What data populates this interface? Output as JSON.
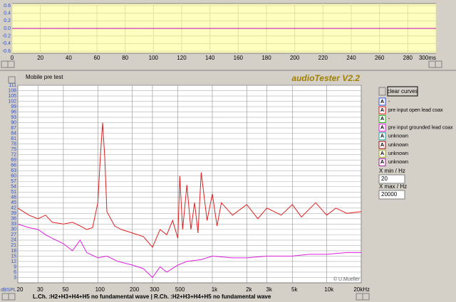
{
  "scope": {
    "type": "line",
    "xlim": [
      0,
      300
    ],
    "ylim": [
      -0.6,
      0.6
    ],
    "xticks": [
      0,
      20,
      40,
      60,
      80,
      100,
      120,
      140,
      160,
      180,
      200,
      220,
      240,
      260,
      280,
      {
        "value": 300,
        "label": "300ms"
      }
    ],
    "yticks": [
      0.6,
      0.4,
      0.2,
      {
        "value": 0,
        "label": "0.0"
      },
      -0.2,
      -0.4,
      -0.6
    ],
    "series": [
      {
        "color": "#c000c0",
        "x": [
          0,
          300
        ],
        "values": [
          0,
          0
        ]
      }
    ],
    "grid": true
  },
  "app_title": "audioTester V2.2",
  "test_name": "Mobile pre test",
  "chart_data": {
    "type": "line",
    "xscale": "log",
    "xlim": [
      20,
      20000
    ],
    "ylim": [
      0,
      111
    ],
    "x_axis_label": "dBSPL",
    "xticks": [
      20,
      30,
      50,
      100,
      200,
      300,
      500,
      {
        "value": 1000,
        "label": "1k"
      },
      {
        "value": 2000,
        "label": "2k"
      },
      {
        "value": 3000,
        "label": "3k"
      },
      {
        "value": 5000,
        "label": "5k"
      },
      {
        "value": 10000,
        "label": "10k"
      },
      {
        "value": 20000,
        "label": "20kHz"
      }
    ],
    "yticks": [
      3,
      6,
      9,
      12,
      15,
      18,
      21,
      24,
      27,
      30,
      33,
      36,
      39,
      42,
      45,
      48,
      51,
      54,
      57,
      60,
      63,
      66,
      69,
      72,
      75,
      78,
      81,
      84,
      87,
      90,
      93,
      96,
      99,
      102,
      105,
      108,
      111
    ],
    "grid": true,
    "credit": "© U.Mueller",
    "series": [
      {
        "name": "pre input open lead coax",
        "color": "#e02020",
        "x": [
          20,
          25,
          30,
          35,
          40,
          50,
          60,
          70,
          80,
          90,
          100,
          105,
          110,
          115,
          120,
          140,
          160,
          200,
          250,
          300,
          350,
          400,
          450,
          500,
          520,
          550,
          600,
          650,
          700,
          750,
          800,
          900,
          1000,
          1100,
          1200,
          1500,
          2000,
          2500,
          3000,
          4000,
          5000,
          6000,
          8000,
          10000,
          12000,
          15000,
          20000
        ],
        "values": [
          42,
          38,
          36,
          38,
          34,
          33,
          34,
          32,
          30,
          31,
          45,
          70,
          90,
          70,
          40,
          32,
          30,
          28,
          26,
          20,
          30,
          27,
          35,
          25,
          60,
          30,
          55,
          30,
          45,
          28,
          62,
          35,
          50,
          32,
          45,
          38,
          44,
          36,
          42,
          38,
          44,
          37,
          45,
          38,
          42,
          39,
          40
        ]
      },
      {
        "name": "pre input grounded lead coax",
        "color": "#e020e0",
        "x": [
          20,
          25,
          30,
          35,
          40,
          50,
          60,
          70,
          80,
          100,
          120,
          150,
          200,
          250,
          300,
          350,
          400,
          500,
          600,
          800,
          1000,
          1500,
          2000,
          3000,
          5000,
          7000,
          10000,
          15000,
          20000
        ],
        "values": [
          33,
          31,
          30,
          27,
          25,
          22,
          18,
          24,
          17,
          14,
          15,
          12,
          10,
          8,
          3,
          9,
          6,
          10,
          12,
          13,
          15,
          14,
          14,
          15,
          15,
          16,
          16,
          17,
          17
        ]
      }
    ]
  },
  "clear_button": "clear curves",
  "legend": [
    {
      "icon": "A",
      "name": "-",
      "color": "#3050e0"
    },
    {
      "icon": "A",
      "name": "pre input open lead coax",
      "color": "#e02020"
    },
    {
      "icon": "A",
      "name": "-",
      "color": "#20b020"
    },
    {
      "icon": "A",
      "name": "pre input grounded lead coax",
      "color": "#e020e0"
    },
    {
      "icon": "A",
      "name": "unknown",
      "color": "#20a0a0"
    },
    {
      "icon": "A",
      "name": "unknown",
      "color": "#a01010"
    },
    {
      "icon": "A",
      "name": "unknown",
      "color": "#a0a020"
    },
    {
      "icon": "A",
      "name": "unknown",
      "color": "#a020a0"
    }
  ],
  "x_min": {
    "label": "X min / Hz",
    "value": "20"
  },
  "x_max": {
    "label": "X max / Hz",
    "value": "20000"
  },
  "status": "L.Ch. :H2+H3+H4+H5 no fundamental wave | R.Ch. :H2+H3+H4+H5 no fundamental wave"
}
